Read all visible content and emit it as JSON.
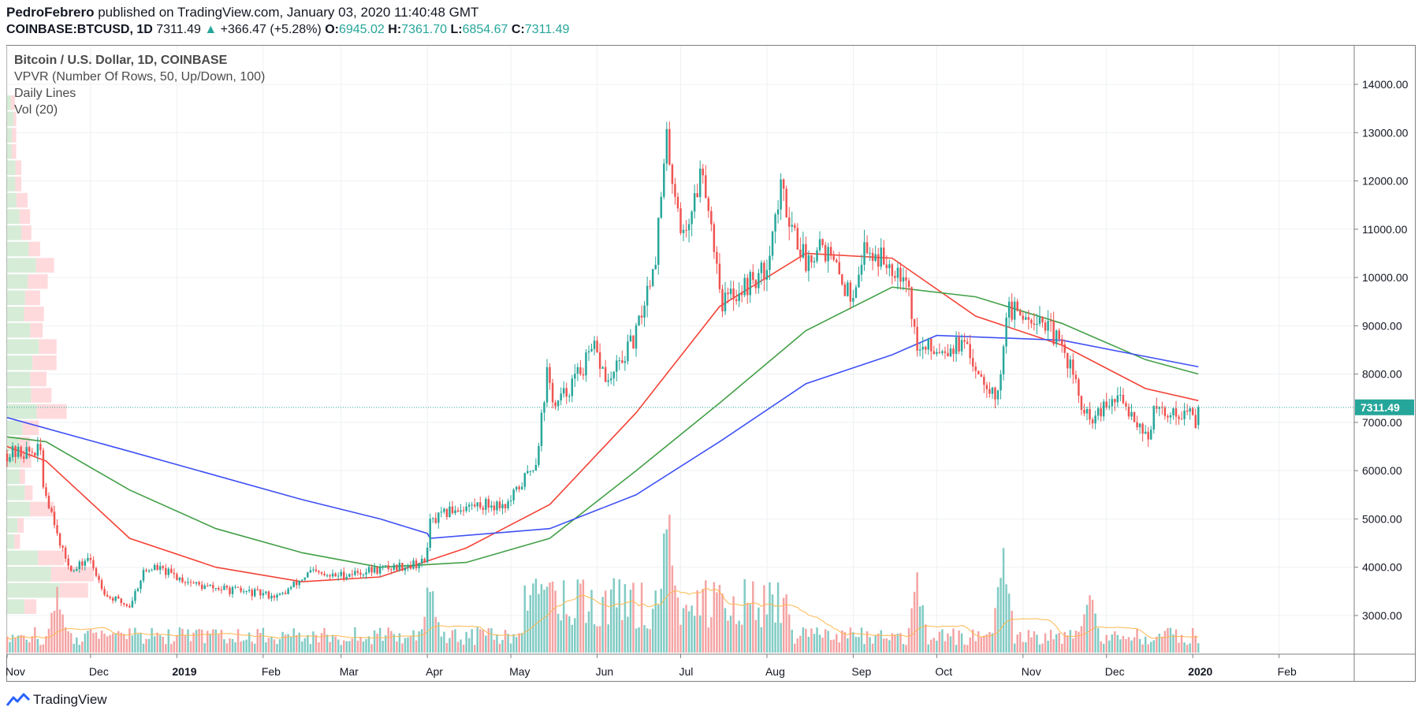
{
  "header": {
    "author": "PedroFebrero",
    "published": " published on TradingView.com, January 03, 2020 11:40:48 GMT",
    "symbol": "COINBASE:BTCUSD, 1D",
    "last": "7311.49",
    "change": "+366.47 (+5.28%)",
    "o_label": "O:",
    "o": "6945.02",
    "h_label": "H:",
    "h": "7361.70",
    "l_label": "L:",
    "l": "6854.67",
    "c_label": "C:",
    "c": "7311.49"
  },
  "legend": {
    "title": "Bitcoin / U.S. Dollar, 1D, COINBASE",
    "vpvr": "VPVR (Number Of Rows, 50, Up/Down, 100)",
    "daily": "Daily Lines",
    "vol": "Vol (20)"
  },
  "footer": {
    "brand": "TradingView"
  },
  "colors": {
    "up": "#26a69a",
    "down": "#ef5350",
    "ma50": "#f44336",
    "ma100": "#43a047",
    "ma200": "#3f51f5",
    "volma": "#ffb74d"
  },
  "chart_data": {
    "type": "candlestick",
    "price_axis": {
      "min": 2200,
      "max": 14800,
      "ticks": [
        3000,
        4000,
        5000,
        6000,
        7000,
        8000,
        9000,
        10000,
        11000,
        12000,
        13000,
        14000
      ],
      "tick_labels": [
        "3000.00",
        "4000.00",
        "5000.00",
        "6000.00",
        "7000.00",
        "8000.00",
        "9000.00",
        "10000.00",
        "11000.00",
        "12000.00",
        "13000.00",
        "14000.00"
      ]
    },
    "time_axis": {
      "start": "2018-11-01",
      "end": "2020-02-28",
      "labels": [
        {
          "text": "Nov",
          "date": "2018-11-01"
        },
        {
          "text": "Dec",
          "date": "2018-12-01"
        },
        {
          "text": "2019",
          "date": "2019-01-01"
        },
        {
          "text": "Feb",
          "date": "2019-02-01"
        },
        {
          "text": "Mar",
          "date": "2019-03-01"
        },
        {
          "text": "Apr",
          "date": "2019-04-01"
        },
        {
          "text": "May",
          "date": "2019-05-01"
        },
        {
          "text": "Jun",
          "date": "2019-06-01"
        },
        {
          "text": "Jul",
          "date": "2019-07-01"
        },
        {
          "text": "Aug",
          "date": "2019-08-01"
        },
        {
          "text": "Sep",
          "date": "2019-09-01"
        },
        {
          "text": "Oct",
          "date": "2019-10-01"
        },
        {
          "text": "Nov",
          "date": "2019-11-01"
        },
        {
          "text": "Dec",
          "date": "2019-12-01"
        },
        {
          "text": "2020",
          "date": "2020-01-01"
        },
        {
          "text": "Feb",
          "date": "2020-02-01"
        }
      ]
    },
    "last_price": {
      "value": 7311.49,
      "label": "7311.49"
    },
    "close_keypoints": [
      [
        "2018-11-01",
        6350
      ],
      [
        "2018-11-13",
        6400
      ],
      [
        "2018-11-14",
        5700
      ],
      [
        "2018-11-19",
        4800
      ],
      [
        "2018-11-20",
        4400
      ],
      [
        "2018-11-25",
        3900
      ],
      [
        "2018-11-30",
        4200
      ],
      [
        "2018-12-07",
        3400
      ],
      [
        "2018-12-15",
        3200
      ],
      [
        "2018-12-20",
        3900
      ],
      [
        "2018-12-24",
        4000
      ],
      [
        "2019-01-01",
        3800
      ],
      [
        "2019-01-10",
        3600
      ],
      [
        "2019-02-07",
        3400
      ],
      [
        "2019-02-18",
        3900
      ],
      [
        "2019-02-24",
        3800
      ],
      [
        "2019-03-31",
        4100
      ],
      [
        "2019-04-02",
        4900
      ],
      [
        "2019-04-10",
        5200
      ],
      [
        "2019-04-20",
        5300
      ],
      [
        "2019-04-30",
        5300
      ],
      [
        "2019-05-10",
        6200
      ],
      [
        "2019-05-14",
        8000
      ],
      [
        "2019-05-17",
        7300
      ],
      [
        "2019-05-31",
        8500
      ],
      [
        "2019-06-05",
        7800
      ],
      [
        "2019-06-15",
        8800
      ],
      [
        "2019-06-22",
        10500
      ],
      [
        "2019-06-26",
        12800
      ],
      [
        "2019-07-02",
        10800
      ],
      [
        "2019-07-09",
        12300
      ],
      [
        "2019-07-16",
        9500
      ],
      [
        "2019-07-31",
        10100
      ],
      [
        "2019-08-06",
        11800
      ],
      [
        "2019-08-15",
        10300
      ],
      [
        "2019-08-20",
        10800
      ],
      [
        "2019-08-31",
        9600
      ],
      [
        "2019-09-05",
        10600
      ],
      [
        "2019-09-20",
        10100
      ],
      [
        "2019-09-24",
        8500
      ],
      [
        "2019-10-10",
        8600
      ],
      [
        "2019-10-23",
        7500
      ],
      [
        "2019-10-26",
        9300
      ],
      [
        "2019-11-07",
        9200
      ],
      [
        "2019-11-12",
        8800
      ],
      [
        "2019-11-18",
        8200
      ],
      [
        "2019-11-22",
        7300
      ],
      [
        "2019-11-25",
        7000
      ],
      [
        "2019-12-05",
        7500
      ],
      [
        "2019-12-10",
        7200
      ],
      [
        "2019-12-16",
        6700
      ],
      [
        "2019-12-18",
        7200
      ],
      [
        "2019-12-31",
        7200
      ],
      [
        "2020-01-02",
        6950
      ],
      [
        "2020-01-03",
        7311
      ]
    ],
    "moving_averages": [
      {
        "color": "#f44336",
        "points": [
          [
            "2018-11-01",
            6500
          ],
          [
            "2018-11-15",
            6200
          ],
          [
            "2018-12-15",
            4600
          ],
          [
            "2019-01-15",
            4000
          ],
          [
            "2019-02-15",
            3700
          ],
          [
            "2019-03-15",
            3800
          ],
          [
            "2019-04-15",
            4400
          ],
          [
            "2019-05-15",
            5300
          ],
          [
            "2019-06-15",
            7200
          ],
          [
            "2019-07-15",
            9400
          ],
          [
            "2019-08-15",
            10500
          ],
          [
            "2019-09-15",
            10400
          ],
          [
            "2019-10-15",
            9200
          ],
          [
            "2019-11-15",
            8600
          ],
          [
            "2019-12-15",
            7700
          ],
          [
            "2020-01-03",
            7450
          ]
        ]
      },
      {
        "color": "#43a047",
        "points": [
          [
            "2018-11-01",
            6700
          ],
          [
            "2018-11-15",
            6600
          ],
          [
            "2018-12-15",
            5600
          ],
          [
            "2019-01-15",
            4800
          ],
          [
            "2019-02-15",
            4300
          ],
          [
            "2019-03-15",
            4000
          ],
          [
            "2019-04-15",
            4100
          ],
          [
            "2019-05-15",
            4600
          ],
          [
            "2019-06-15",
            6000
          ],
          [
            "2019-07-15",
            7400
          ],
          [
            "2019-08-15",
            8900
          ],
          [
            "2019-09-15",
            9800
          ],
          [
            "2019-10-15",
            9600
          ],
          [
            "2019-11-15",
            9050
          ],
          [
            "2019-12-15",
            8300
          ],
          [
            "2020-01-03",
            8000
          ]
        ]
      },
      {
        "color": "#3f51f5",
        "points": [
          [
            "2018-11-01",
            7100
          ],
          [
            "2018-12-15",
            6400
          ],
          [
            "2019-01-15",
            5900
          ],
          [
            "2019-02-15",
            5400
          ],
          [
            "2019-03-15",
            5000
          ],
          [
            "2019-04-01",
            4700
          ],
          [
            "2019-04-02",
            4600
          ],
          [
            "2019-05-15",
            4800
          ],
          [
            "2019-06-15",
            5500
          ],
          [
            "2019-07-15",
            6600
          ],
          [
            "2019-08-15",
            7800
          ],
          [
            "2019-09-15",
            8400
          ],
          [
            "2019-10-01",
            8800
          ],
          [
            "2019-11-15",
            8700
          ],
          [
            "2020-01-03",
            8150
          ]
        ]
      }
    ],
    "volume_spikes": [
      [
        "2018-11-19",
        0.45
      ],
      [
        "2019-04-02",
        0.55
      ],
      [
        "2019-05-12",
        0.6
      ],
      [
        "2019-06-26",
        1.0
      ],
      [
        "2019-06-27",
        0.95
      ],
      [
        "2019-07-15",
        0.55
      ],
      [
        "2019-09-24",
        0.55
      ],
      [
        "2019-10-25",
        0.8
      ],
      [
        "2019-11-25",
        0.45
      ]
    ]
  }
}
